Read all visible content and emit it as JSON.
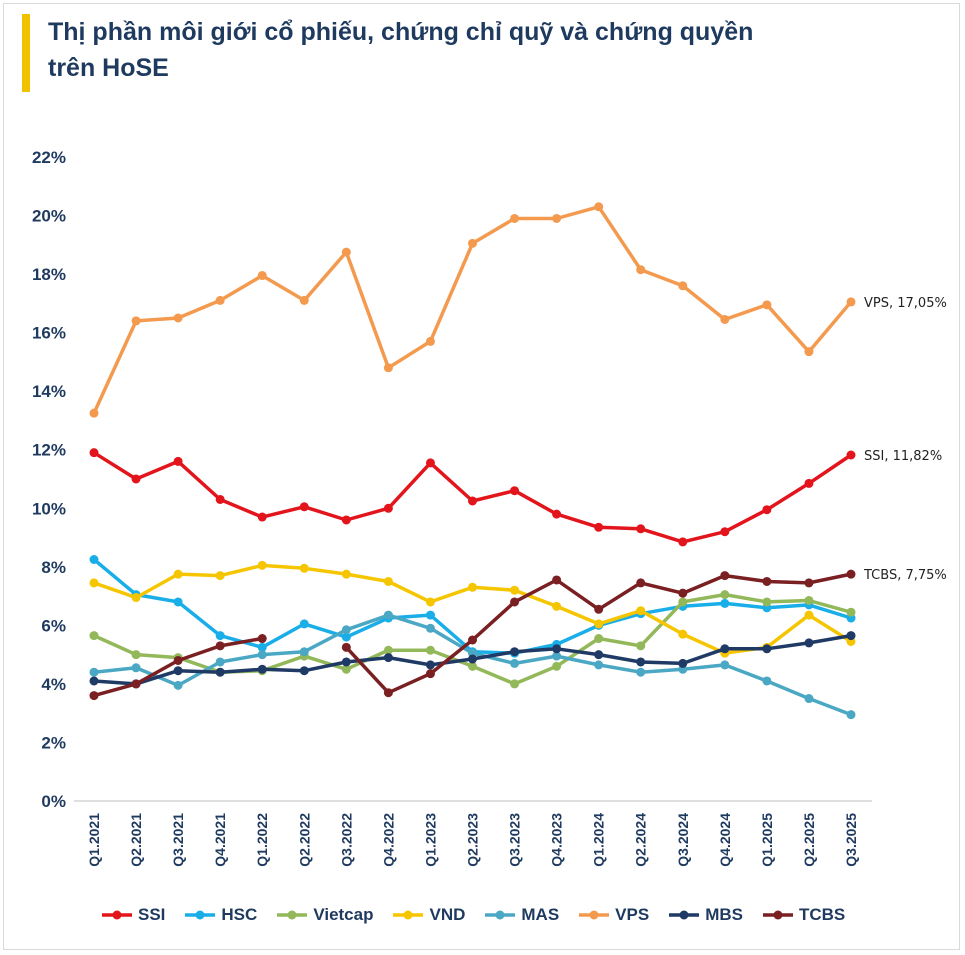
{
  "title_line1": "Thị phần môi giới cổ phiếu, chứng chỉ quỹ và chứng quyền",
  "title_line2": "trên HoSE",
  "chart_data": {
    "type": "line",
    "title": "Thị phần môi giới cổ phiếu, chứng chỉ quỹ và chứng quyền trên HoSE",
    "x": [
      "Q1.2021",
      "Q2.2021",
      "Q3.2021",
      "Q4.2021",
      "Q1.2022",
      "Q2.2022",
      "Q3.2022",
      "Q4.2022",
      "Q1.2023",
      "Q2.2023",
      "Q3.2023",
      "Q4.2023",
      "Q1.2024",
      "Q2.2024",
      "Q3.2024",
      "Q4.2024",
      "Q1.2025",
      "Q2.2025",
      "Q3.2025"
    ],
    "ylim": [
      0,
      22
    ],
    "yticks": [
      "0%",
      "2%",
      "4%",
      "6%",
      "8%",
      "10%",
      "12%",
      "14%",
      "16%",
      "18%",
      "20%",
      "22%"
    ],
    "grid": false,
    "legend_position": "bottom",
    "series": [
      {
        "name": "SSI",
        "color": "#e3151c",
        "values": [
          11.9,
          11.0,
          11.6,
          10.3,
          9.7,
          10.05,
          9.6,
          10.0,
          11.55,
          10.25,
          10.6,
          9.8,
          9.35,
          9.3,
          8.85,
          9.2,
          9.95,
          10.85,
          11.82
        ],
        "end_label": "SSI, 11,82%"
      },
      {
        "name": "HSC",
        "color": "#19aee8",
        "values": [
          8.25,
          7.05,
          6.8,
          5.65,
          5.25,
          6.05,
          5.6,
          6.25,
          6.35,
          5.1,
          5.05,
          5.35,
          6.0,
          6.4,
          6.65,
          6.75,
          6.6,
          6.7,
          6.25
        ]
      },
      {
        "name": "Vietcap",
        "color": "#92b85a",
        "values": [
          5.65,
          5.0,
          4.9,
          4.4,
          4.45,
          4.95,
          4.5,
          5.15,
          5.15,
          4.6,
          4.0,
          4.6,
          5.55,
          5.3,
          6.8,
          7.05,
          6.8,
          6.85,
          6.45
        ]
      },
      {
        "name": "VND",
        "color": "#f5c600",
        "values": [
          7.45,
          6.95,
          7.75,
          7.7,
          8.05,
          7.95,
          7.75,
          7.5,
          6.8,
          7.3,
          7.2,
          6.65,
          6.05,
          6.5,
          5.7,
          5.05,
          5.25,
          6.35,
          5.45
        ]
      },
      {
        "name": "MAS",
        "color": "#4ba8c5",
        "values": [
          4.4,
          4.55,
          3.95,
          4.75,
          5.0,
          5.1,
          5.85,
          6.35,
          5.9,
          5.05,
          4.7,
          4.95,
          4.65,
          4.4,
          4.5,
          4.65,
          4.1,
          3.5,
          2.95
        ]
      },
      {
        "name": "VPS",
        "color": "#f39a4e",
        "values": [
          13.25,
          16.4,
          16.5,
          17.1,
          17.95,
          17.1,
          18.75,
          14.8,
          15.7,
          19.05,
          19.9,
          19.9,
          20.3,
          18.15,
          17.6,
          16.45,
          16.95,
          15.35,
          17.05
        ],
        "end_label": "VPS, 17,05%"
      },
      {
        "name": "MBS",
        "color": "#1f3a64",
        "values": [
          4.1,
          4.0,
          4.45,
          4.4,
          4.5,
          4.45,
          4.75,
          4.9,
          4.65,
          4.85,
          5.1,
          5.2,
          5.0,
          4.75,
          4.7,
          5.2,
          5.2,
          5.4,
          5.65
        ]
      },
      {
        "name": "TCBS",
        "color": "#7a1f22",
        "values": [
          3.6,
          4.0,
          4.8,
          5.3,
          5.55,
          null,
          5.25,
          3.7,
          4.35,
          5.5,
          6.8,
          7.55,
          6.55,
          7.45,
          7.1,
          7.7,
          7.5,
          7.45,
          7.75
        ],
        "end_label": "TCBS, 7,75%"
      }
    ]
  }
}
